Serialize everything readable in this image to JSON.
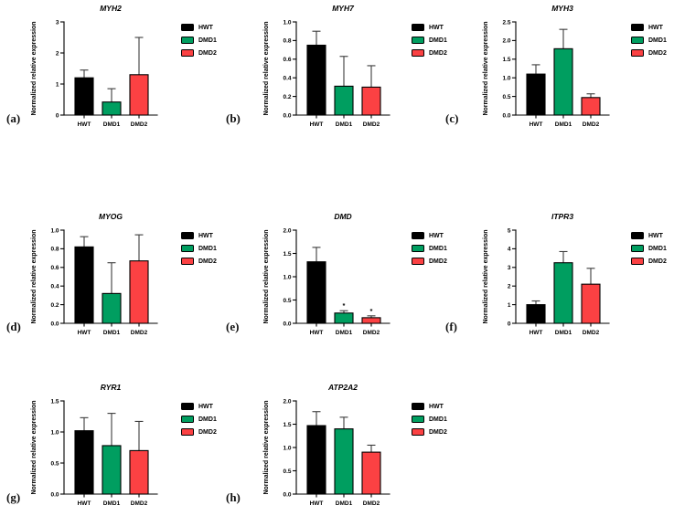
{
  "figure": {
    "background": "#ffffff",
    "panel_labels": [
      "(a)",
      "(b)",
      "(c)",
      "(d)",
      "(e)",
      "(f)",
      "(g)",
      "(h)"
    ]
  },
  "series_colors": {
    "HWT": "#000000",
    "DMD1": "#009E60",
    "DMD2": "#FB4143"
  },
  "error_bar_color": "#3C3C3C",
  "chart_data": [
    {
      "type": "bar",
      "panel_label": "(a)",
      "title": "MYH2",
      "ylabel": "Normalized relative expression",
      "categories": [
        "HWT",
        "DMD1",
        "DMD2"
      ],
      "values": [
        1.2,
        0.42,
        1.3
      ],
      "errors_upper": [
        0.25,
        0.43,
        1.2
      ],
      "significance": [
        "",
        "",
        ""
      ],
      "ylim": [
        0,
        3
      ],
      "yticks": [
        "0",
        "1",
        "2",
        "3"
      ],
      "grid": false,
      "legend": [
        "HWT",
        "DMD1",
        "DMD2"
      ],
      "legend_position": "right"
    },
    {
      "type": "bar",
      "panel_label": "(b)",
      "title": "MYH7",
      "ylabel": "Normalized relative expression",
      "categories": [
        "HWT",
        "DMD1",
        "DMD2"
      ],
      "values": [
        0.75,
        0.31,
        0.3
      ],
      "errors_upper": [
        0.15,
        0.32,
        0.23
      ],
      "significance": [
        "",
        "",
        ""
      ],
      "ylim": [
        0,
        1
      ],
      "yticks": [
        "0.0",
        "0.2",
        "0.4",
        "0.6",
        "0.8",
        "1.0"
      ],
      "grid": false,
      "legend": [
        "HWT",
        "DMD1",
        "DMD2"
      ],
      "legend_position": "right"
    },
    {
      "type": "bar",
      "panel_label": "(c)",
      "title": "MYH3",
      "ylabel": "Normalized relative expression",
      "categories": [
        "HWT",
        "DMD1",
        "DMD2"
      ],
      "values": [
        1.1,
        1.78,
        0.47
      ],
      "errors_upper": [
        0.25,
        0.52,
        0.1
      ],
      "significance": [
        "",
        "",
        ""
      ],
      "ylim": [
        0,
        2.5
      ],
      "yticks": [
        "0.0",
        "0.5",
        "1.0",
        "1.5",
        "2.0",
        "2.5"
      ],
      "grid": false,
      "legend": [
        "HWT",
        "DMD1",
        "DMD2"
      ],
      "legend_position": "right"
    },
    {
      "type": "bar",
      "panel_label": "(d)",
      "title": "MYOG",
      "ylabel": "Normalized relative expression",
      "categories": [
        "HWT",
        "DMD1",
        "DMD2"
      ],
      "values": [
        0.82,
        0.32,
        0.67
      ],
      "errors_upper": [
        0.11,
        0.33,
        0.28
      ],
      "significance": [
        "",
        "",
        ""
      ],
      "ylim": [
        0,
        1
      ],
      "yticks": [
        "0.0",
        "0.2",
        "0.4",
        "0.6",
        "0.8",
        "1.0"
      ],
      "grid": false,
      "legend": [
        "HWT",
        "DMD1",
        "DMD2"
      ],
      "legend_position": "right"
    },
    {
      "type": "bar",
      "panel_label": "(e)",
      "title": "DMD",
      "ylabel": "Normalized relative expression",
      "categories": [
        "HWT",
        "DMD1",
        "DMD2"
      ],
      "values": [
        1.32,
        0.22,
        0.12
      ],
      "errors_upper": [
        0.31,
        0.05,
        0.04
      ],
      "significance": [
        "",
        "*",
        "*"
      ],
      "ylim": [
        0,
        2
      ],
      "yticks": [
        "0.0",
        "0.5",
        "1.0",
        "1.5",
        "2.0"
      ],
      "grid": false,
      "legend": [
        "HWT",
        "DMD1",
        "DMD2"
      ],
      "legend_position": "right"
    },
    {
      "type": "bar",
      "panel_label": "(f)",
      "title": "ITPR3",
      "ylabel": "Normalized relative expression",
      "categories": [
        "HWT",
        "DMD1",
        "DMD2"
      ],
      "values": [
        1.0,
        3.25,
        2.1
      ],
      "errors_upper": [
        0.2,
        0.6,
        0.85
      ],
      "significance": [
        "",
        "",
        ""
      ],
      "ylim": [
        0,
        5
      ],
      "yticks": [
        "0",
        "1",
        "2",
        "3",
        "4",
        "5"
      ],
      "grid": false,
      "legend": [
        "HWT",
        "DMD1",
        "DMD2"
      ],
      "legend_position": "right"
    },
    {
      "type": "bar",
      "panel_label": "(g)",
      "title": "RYR1",
      "ylabel": "Normalized relative expression",
      "categories": [
        "HWT",
        "DMD1",
        "DMD2"
      ],
      "values": [
        1.02,
        0.78,
        0.7
      ],
      "errors_upper": [
        0.21,
        0.52,
        0.47
      ],
      "significance": [
        "",
        "",
        ""
      ],
      "ylim": [
        0,
        1.5
      ],
      "yticks": [
        "0.0",
        "0.5",
        "1.0",
        "1.5"
      ],
      "grid": false,
      "legend": [
        "HWT",
        "DMD1",
        "DMD2"
      ],
      "legend_position": "right"
    },
    {
      "type": "bar",
      "panel_label": "(h)",
      "title": "ATP2A2",
      "ylabel": "Normalized relative expression",
      "categories": [
        "HWT",
        "DMD1",
        "DMD2"
      ],
      "values": [
        1.47,
        1.4,
        0.9
      ],
      "errors_upper": [
        0.3,
        0.25,
        0.15
      ],
      "significance": [
        "",
        "",
        ""
      ],
      "ylim": [
        0,
        2
      ],
      "yticks": [
        "0.0",
        "0.5",
        "1.0",
        "1.5",
        "2.0"
      ],
      "grid": false,
      "legend": [
        "HWT",
        "DMD1",
        "DMD2"
      ],
      "legend_position": "right"
    }
  ]
}
